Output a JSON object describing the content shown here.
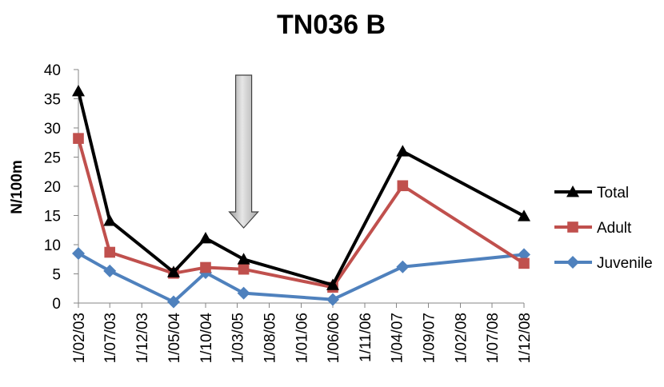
{
  "chart_data": {
    "type": "line",
    "title": "TN036 B",
    "xlabel": "",
    "ylabel": "N/100m",
    "ylim": [
      0,
      40
    ],
    "yticks": [
      0,
      5,
      10,
      15,
      20,
      25,
      30,
      35,
      40
    ],
    "categories": [
      "1/02/03",
      "1/07/03",
      "1/12/03",
      "1/05/04",
      "1/10/04",
      "1/03/05",
      "1/08/05",
      "1/01/06",
      "1/06/06",
      "1/11/06",
      "1/04/07",
      "1/09/07",
      "1/02/08",
      "1/07/08",
      "1/12/08"
    ],
    "series": [
      {
        "name": "Total",
        "color": "#000000",
        "marker": "triangle",
        "points": [
          {
            "x": "2003-02-01",
            "y": 36.3
          },
          {
            "x": "2003-07-01",
            "y": 14.1
          },
          {
            "x": "2004-05-01",
            "y": 5.3
          },
          {
            "x": "2004-10-01",
            "y": 11.1
          },
          {
            "x": "2005-04-01",
            "y": 7.5
          },
          {
            "x": "2006-06-01",
            "y": 3.1
          },
          {
            "x": "2007-05-01",
            "y": 26.0
          },
          {
            "x": "2008-12-01",
            "y": 14.9
          }
        ]
      },
      {
        "name": "Adult",
        "color": "#c0504d",
        "marker": "square",
        "points": [
          {
            "x": "2003-02-01",
            "y": 28.2
          },
          {
            "x": "2003-07-01",
            "y": 8.7
          },
          {
            "x": "2004-05-01",
            "y": 5.1
          },
          {
            "x": "2004-10-01",
            "y": 6.1
          },
          {
            "x": "2005-04-01",
            "y": 5.8
          },
          {
            "x": "2006-06-01",
            "y": 2.7
          },
          {
            "x": "2007-05-01",
            "y": 20.1
          },
          {
            "x": "2008-12-01",
            "y": 6.8
          }
        ]
      },
      {
        "name": "Juvenile",
        "color": "#4f81bd",
        "marker": "diamond",
        "points": [
          {
            "x": "2003-02-01",
            "y": 8.5
          },
          {
            "x": "2003-07-01",
            "y": 5.5
          },
          {
            "x": "2004-05-01",
            "y": 0.2
          },
          {
            "x": "2004-10-01",
            "y": 5.2
          },
          {
            "x": "2005-04-01",
            "y": 1.7
          },
          {
            "x": "2006-06-01",
            "y": 0.6
          },
          {
            "x": "2007-05-01",
            "y": 6.2
          },
          {
            "x": "2008-12-01",
            "y": 8.3
          }
        ]
      }
    ],
    "annotation": {
      "type": "down-arrow",
      "x": "2005-04-01",
      "color": "#c0c0c0"
    },
    "legend_position": "right",
    "grid": false
  }
}
